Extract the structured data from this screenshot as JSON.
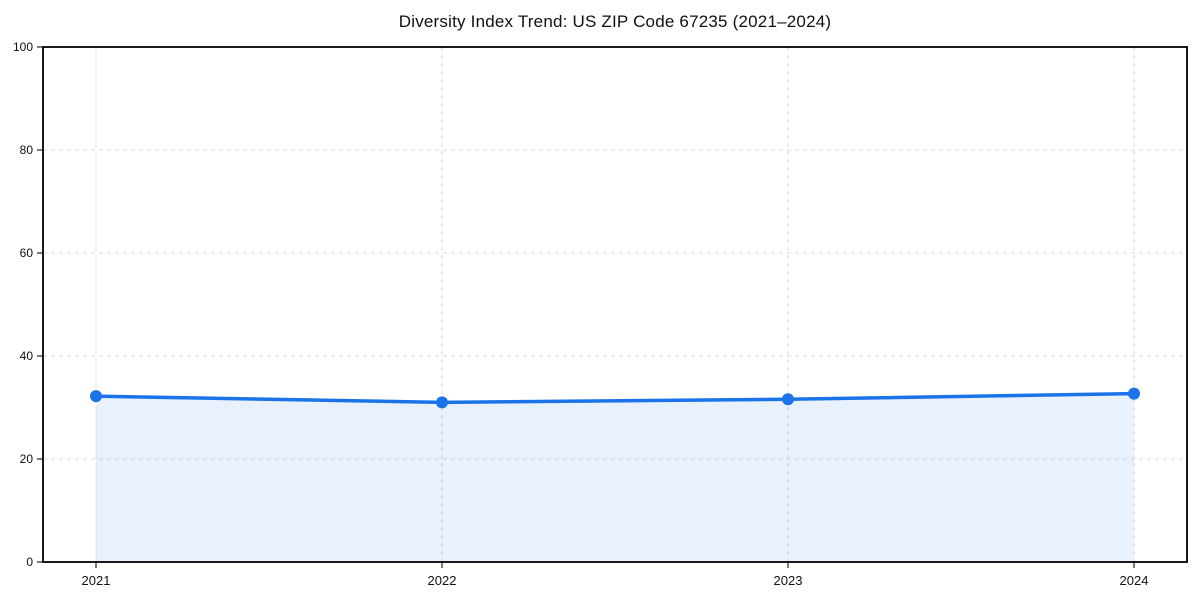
{
  "chart_data": {
    "type": "area",
    "title": "Diversity Index Trend: US ZIP Code 67235 (2021–2024)",
    "series_name": "Diversity Index",
    "x": [
      2021,
      2022,
      2023,
      2024
    ],
    "xticklabels": [
      "2021",
      "2022",
      "2023",
      "2024"
    ],
    "values": [
      32.2,
      31.0,
      31.6,
      32.7
    ],
    "xlabel": "",
    "ylabel": "",
    "ylim": [
      0,
      100
    ],
    "yticks": [
      0,
      20,
      40,
      60,
      80,
      100
    ],
    "grid": true,
    "grid_style": "dashed",
    "legend": "none",
    "marker": "circle",
    "colors": {
      "line": "#1a73e8",
      "marker": "#1a73e8",
      "fill": "#1a73e8",
      "fill_opacity": 0.1,
      "grid": "#d9d9d9",
      "frame": "#000000",
      "background": "#ffffff"
    }
  }
}
